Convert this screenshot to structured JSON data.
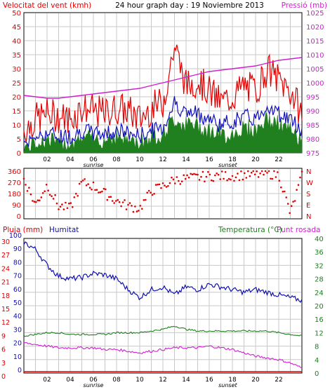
{
  "header": {
    "left_title": "Velocitat del vent (kmh)",
    "center_title": "24 hour graph day : 19 Noviembre 2013",
    "right_title": "Pressió (mb)"
  },
  "bottom_header": {
    "left_a": "Pluja (mm)",
    "left_b": "Humitat",
    "right_a": "Temperatura (°C)",
    "right_b": "Punt rosada"
  },
  "colors": {
    "wind_gust": "#e00000",
    "wind_avg": "#1010c0",
    "wind_bar": "#208020",
    "pressure": "#d020d0",
    "direction": "#e00000",
    "humidity": "#1010b0",
    "temperature": "#208020",
    "dewpoint": "#d020d0",
    "rain": "#e00000",
    "grid": "#c8c8c8"
  },
  "x_axis": {
    "tick_labels": [
      "02",
      "04",
      "06",
      "08",
      "10",
      "12",
      "14",
      "16",
      "18",
      "20",
      "22"
    ],
    "sunrise_label": "sunrise",
    "sunset_label": "sunset",
    "sunrise_hour": 6.0,
    "sunset_hour": 17.6
  },
  "chart_data": [
    {
      "type": "line",
      "id": "wind-pressure",
      "left_axis": {
        "ticks": [
          "0",
          "5",
          "10",
          "15",
          "20",
          "25",
          "30",
          "35",
          "40",
          "45",
          "50"
        ],
        "ylim": [
          0,
          50
        ]
      },
      "right_axis": {
        "ticks": [
          "975",
          "980",
          "985",
          "990",
          "995",
          "1000",
          "1005",
          "1010",
          "1015",
          "1020",
          "1025"
        ],
        "ylim": [
          975,
          1025
        ]
      },
      "x": [
        0,
        1,
        2,
        3,
        4,
        5,
        6,
        7,
        8,
        9,
        10,
        11,
        12,
        13,
        14,
        15,
        16,
        17,
        18,
        19,
        20,
        21,
        22,
        23,
        24
      ],
      "series": [
        {
          "key": "gust",
          "values": [
            8,
            12,
            14,
            13,
            12,
            16,
            15,
            14,
            16,
            15,
            12,
            16,
            18,
            38,
            24,
            26,
            22,
            18,
            20,
            24,
            22,
            30,
            26,
            22,
            14
          ]
        },
        {
          "key": "avg",
          "values": [
            4,
            6,
            7,
            6,
            6,
            8,
            7,
            7,
            8,
            7,
            6,
            8,
            9,
            18,
            14,
            14,
            12,
            10,
            11,
            13,
            12,
            17,
            14,
            12,
            8
          ]
        },
        {
          "key": "bar",
          "values": [
            2,
            4,
            5,
            4,
            4,
            6,
            5,
            5,
            6,
            5,
            4,
            6,
            7,
            12,
            10,
            10,
            8,
            6,
            7,
            9,
            8,
            12,
            10,
            8,
            5
          ]
        },
        {
          "key": "pressure",
          "values": [
            995.5,
            995,
            994.5,
            994.5,
            995,
            995.5,
            996,
            996.5,
            997,
            997.5,
            998,
            999,
            1000,
            1001,
            1002,
            1003,
            1004,
            1004.5,
            1005,
            1005.5,
            1006,
            1007,
            1008,
            1008.5,
            1009
          ]
        }
      ]
    },
    {
      "type": "scatter",
      "id": "wind-direction",
      "left_axis": {
        "ticks": [
          "360",
          "270",
          "180",
          "90",
          "0"
        ],
        "ylim": [
          0,
          360
        ]
      },
      "right_axis": {
        "ticks": [
          "N",
          "W",
          "S",
          "E",
          "N"
        ]
      },
      "x": [
        0,
        1,
        2,
        3,
        4,
        5,
        6,
        7,
        8,
        9,
        10,
        11,
        12,
        13,
        14,
        15,
        16,
        17,
        18,
        19,
        20,
        21,
        22,
        23,
        24
      ],
      "values": [
        300,
        90,
        250,
        80,
        60,
        270,
        240,
        180,
        120,
        80,
        60,
        200,
        240,
        290,
        300,
        310,
        320,
        320,
        320,
        330,
        330,
        340,
        330,
        20,
        320
      ]
    },
    {
      "type": "line",
      "id": "humidity-temperature",
      "left_axis": {
        "ticks": [
          "0",
          "10",
          "20",
          "30",
          "40",
          "50",
          "60",
          "70",
          "80",
          "90",
          "100"
        ],
        "ylim": [
          0,
          100
        ]
      },
      "left_axis_b": {
        "ticks": [
          "0",
          "3",
          "6",
          "9",
          "12",
          "15",
          "18",
          "21",
          "24",
          "27",
          "30"
        ],
        "ylim": [
          0,
          30
        ]
      },
      "right_axis": {
        "ticks": [
          "0",
          "4",
          "8",
          "12",
          "16",
          "20",
          "24",
          "28",
          "32",
          "36",
          "40"
        ],
        "ylim": [
          0,
          40
        ]
      },
      "x": [
        0,
        1,
        2,
        3,
        4,
        5,
        6,
        7,
        8,
        9,
        10,
        11,
        12,
        13,
        14,
        15,
        16,
        17,
        18,
        19,
        20,
        21,
        22,
        23,
        24
      ],
      "series": [
        {
          "key": "humidity",
          "values": [
            97,
            92,
            80,
            72,
            70,
            71,
            74,
            73,
            70,
            62,
            56,
            62,
            64,
            58,
            64,
            62,
            66,
            64,
            62,
            60,
            62,
            60,
            58,
            56,
            54
          ]
        },
        {
          "key": "temperature",
          "values": [
            11,
            11.5,
            12,
            12,
            11.5,
            11.5,
            11.5,
            11.5,
            12,
            12,
            12,
            12.5,
            13,
            14,
            13,
            12.5,
            12.5,
            12.5,
            12.5,
            12.5,
            12.5,
            12.5,
            12,
            11.5,
            11
          ]
        },
        {
          "key": "dewpoint",
          "values": [
            9,
            8.5,
            8,
            7.5,
            7.5,
            7.5,
            7.5,
            7,
            7,
            6.5,
            6,
            6.5,
            7,
            7.5,
            7.5,
            7.5,
            8,
            7.5,
            7,
            6,
            5,
            4.5,
            4,
            3,
            1.5
          ]
        },
        {
          "key": "rain",
          "values": [
            0,
            0,
            0,
            0,
            0,
            0,
            0,
            0,
            0,
            0,
            0,
            0,
            0,
            0,
            0,
            0,
            0,
            0,
            0,
            0,
            0,
            0,
            0,
            0,
            0
          ]
        }
      ]
    }
  ]
}
